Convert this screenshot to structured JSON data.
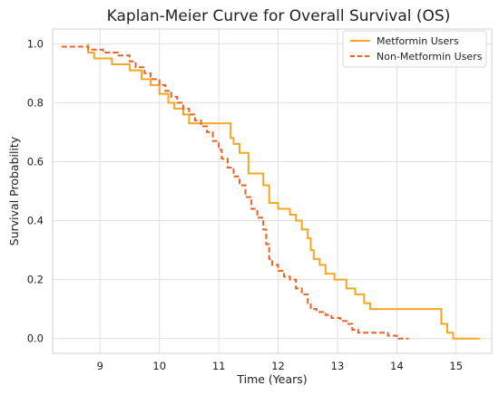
{
  "chart_data": {
    "type": "line",
    "title": "Kaplan-Meier Curve for Overall Survival (OS)",
    "xlabel": "Time (Years)",
    "ylabel": "Survival Probability",
    "xlim": [
      8.2,
      15.6
    ],
    "ylim": [
      -0.05,
      1.05
    ],
    "xticks": [
      9,
      10,
      11,
      12,
      13,
      14,
      15
    ],
    "yticks": [
      0.0,
      0.2,
      0.4,
      0.6,
      0.8,
      1.0
    ],
    "ytick_labels": [
      "0.0",
      "0.2",
      "0.4",
      "0.6",
      "0.8",
      "1.0"
    ],
    "grid": true,
    "legend_position": "top-right",
    "series": [
      {
        "name": "Metformin Users",
        "color": "#f5a623",
        "style": "solid",
        "x": [
          8.8,
          8.9,
          9.2,
          9.5,
          9.7,
          9.8,
          9.85,
          10.0,
          10.15,
          10.25,
          10.4,
          10.5,
          10.7,
          11.2,
          11.25,
          11.35,
          11.5,
          11.75,
          11.85,
          12.0,
          12.2,
          12.3,
          12.4,
          12.5,
          12.55,
          12.6,
          12.7,
          12.8,
          12.95,
          13.15,
          13.3,
          13.45,
          13.55,
          14.75,
          14.85,
          14.95,
          15.4
        ],
        "y": [
          1.0,
          0.97,
          0.95,
          0.93,
          0.91,
          0.88,
          0.88,
          0.86,
          0.83,
          0.8,
          0.78,
          0.76,
          0.73,
          0.73,
          0.68,
          0.66,
          0.63,
          0.56,
          0.52,
          0.46,
          0.44,
          0.42,
          0.4,
          0.37,
          0.34,
          0.3,
          0.27,
          0.25,
          0.22,
          0.2,
          0.17,
          0.15,
          0.12,
          0.07,
          0.05,
          0.02,
          0.0
        ],
        "drop_to": [
          0.97,
          0.95,
          0.93,
          0.91,
          0.88,
          0.88,
          0.86,
          0.83,
          0.8,
          0.78,
          0.76,
          0.73,
          0.73,
          0.68,
          0.66,
          0.63,
          0.56,
          0.52,
          0.46,
          0.44,
          0.42,
          0.4,
          0.37,
          0.34,
          0.3,
          0.27,
          0.25,
          0.22,
          0.2,
          0.17,
          0.15,
          0.12,
          0.1,
          0.05,
          0.02,
          0.0,
          0.0
        ]
      },
      {
        "name": "Non-Metformin Users",
        "color": "#e8632a",
        "style": "dashed",
        "x": [
          8.35,
          8.8,
          9.05,
          9.3,
          9.5,
          9.6,
          9.75,
          9.85,
          10.0,
          10.1,
          10.2,
          10.3,
          10.4,
          10.5,
          10.6,
          10.7,
          10.8,
          10.9,
          11.0,
          11.05,
          11.15,
          11.25,
          11.35,
          11.45,
          11.55,
          11.65,
          11.75,
          11.8,
          11.85,
          11.9,
          12.0,
          12.1,
          12.2,
          12.3,
          12.4,
          12.5,
          12.55,
          12.65,
          12.8,
          12.9,
          13.05,
          13.15,
          13.25,
          13.35,
          13.45,
          13.6,
          13.85,
          14.0,
          14.2
        ],
        "y": [
          0.99,
          0.99,
          0.98,
          0.97,
          0.96,
          0.94,
          0.92,
          0.9,
          0.88,
          0.86,
          0.84,
          0.82,
          0.8,
          0.78,
          0.76,
          0.74,
          0.72,
          0.7,
          0.67,
          0.64,
          0.61,
          0.58,
          0.55,
          0.52,
          0.48,
          0.44,
          0.41,
          0.37,
          0.32,
          0.27,
          0.25,
          0.23,
          0.21,
          0.2,
          0.17,
          0.15,
          0.12,
          0.1,
          0.09,
          0.08,
          0.07,
          0.06,
          0.05,
          0.03,
          0.02,
          0.02,
          0.02,
          0.01,
          0.0
        ],
        "drop_to": [
          0.99,
          0.98,
          0.97,
          0.96,
          0.94,
          0.92,
          0.9,
          0.88,
          0.86,
          0.84,
          0.82,
          0.8,
          0.78,
          0.76,
          0.74,
          0.72,
          0.7,
          0.67,
          0.64,
          0.61,
          0.58,
          0.55,
          0.52,
          0.48,
          0.44,
          0.41,
          0.37,
          0.32,
          0.27,
          0.25,
          0.23,
          0.21,
          0.2,
          0.17,
          0.15,
          0.12,
          0.1,
          0.09,
          0.08,
          0.07,
          0.06,
          0.05,
          0.03,
          0.02,
          0.02,
          0.02,
          0.01,
          0.0,
          0.0
        ]
      }
    ]
  }
}
